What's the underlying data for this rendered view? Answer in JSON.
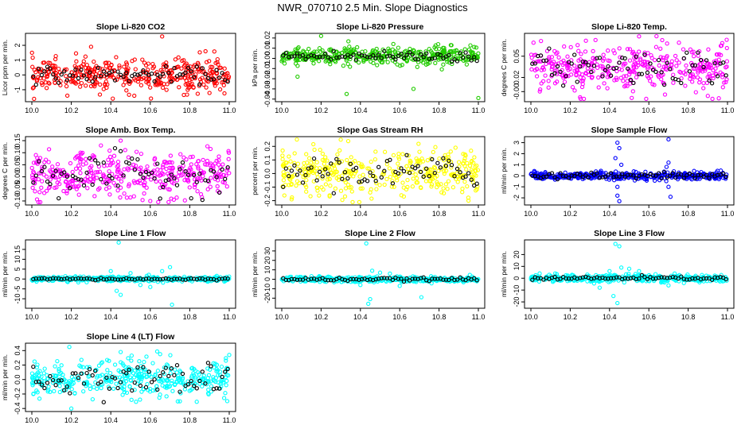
{
  "page": {
    "title": "NWR_070710  2.5 Min. Slope Diagnostics"
  },
  "colors": {
    "red": "#ff0000",
    "green": "#22cc00",
    "magenta": "#ff00ff",
    "yellow": "#ffff00",
    "blue": "#0000ff",
    "cyan": "#00ffff",
    "black": "#000000"
  },
  "chart_data": [
    {
      "type": "scatter",
      "title": "Slope Li-820 CO2",
      "ylabel": "Licor ppm per min.",
      "color": "#ff0000",
      "xlim": [
        10.0,
        11.0
      ],
      "ylim": [
        -1.7,
        2.7
      ],
      "xticks": [
        "10.0",
        "10.2",
        "10.4",
        "10.6",
        "10.8",
        "11.0"
      ],
      "yticks": [
        "-1",
        "0",
        "1",
        "2"
      ],
      "noise_sd": 0.55,
      "point_count": 380,
      "black_sd": 0.25,
      "outliers": [
        [
          10.66,
          2.6
        ],
        [
          10.41,
          -1.6
        ],
        [
          10.18,
          -1.4
        ],
        [
          10.77,
          -1.35
        ],
        [
          10.3,
          1.9
        ],
        [
          10.88,
          1.6
        ]
      ]
    },
    {
      "type": "scatter",
      "title": "Slope Li-820 Pressure",
      "ylabel": "kPa per min.",
      "color": "#22cc00",
      "xlim": [
        10.0,
        11.0
      ],
      "ylim": [
        -0.041,
        0.023
      ],
      "xticks": [
        "10.0",
        "10.2",
        "10.4",
        "10.6",
        "10.8",
        "11.0"
      ],
      "yticks": [
        "-0.04",
        "-0.03",
        "-0.02",
        "-0.01",
        "0.00",
        "0.01",
        "0.02"
      ],
      "noise_sd": 0.0045,
      "point_count": 380,
      "black_sd": 0.003,
      "center": 0.002,
      "outliers": [
        [
          10.2,
          0.022
        ],
        [
          10.33,
          -0.035
        ],
        [
          10.67,
          -0.03
        ],
        [
          11.0,
          -0.039
        ],
        [
          10.08,
          -0.018
        ]
      ]
    },
    {
      "type": "scatter",
      "title": "Slope Li-820 Temp.",
      "ylabel": "degrees C per min.",
      "color": "#ff00ff",
      "xlim": [
        10.0,
        11.0
      ],
      "ylim": [
        -0.012,
        0.08
      ],
      "xticks": [
        "10.0",
        "10.2",
        "10.4",
        "10.6",
        "10.8",
        "11.0"
      ],
      "yticks": [
        "-0.00",
        "0.02",
        "0.05"
      ],
      "noise_sd": 0.016,
      "point_count": 380,
      "black_sd": 0.012,
      "center": 0.035,
      "outliers": [
        [
          10.25,
          -0.008
        ],
        [
          10.9,
          -0.006
        ],
        [
          10.55,
          0.078
        ]
      ]
    },
    {
      "type": "scatter",
      "title": "Slope Amb. Box Temp.",
      "ylabel": "degrees C per min.",
      "color": "#ff00ff",
      "xlim": [
        10.0,
        11.0
      ],
      "ylim": [
        -0.11,
        0.16
      ],
      "xticks": [
        "10.0",
        "10.2",
        "10.4",
        "10.6",
        "10.8",
        "11.0"
      ],
      "yticks": [
        "-0.10",
        "-0.05",
        "0.00",
        "0.05",
        "0.10",
        "0.15"
      ],
      "noise_sd": 0.045,
      "point_count": 380,
      "black_sd": 0.04,
      "center": 0.01,
      "outliers": [
        [
          10.45,
          0.15
        ],
        [
          10.35,
          0.13
        ],
        [
          10.6,
          -0.1
        ]
      ]
    },
    {
      "type": "scatter",
      "title": "Slope Gas Stream RH",
      "ylabel": "percent per min.",
      "color": "#ffff00",
      "xlim": [
        10.0,
        11.0
      ],
      "ylim": [
        -0.22,
        0.26
      ],
      "xticks": [
        "10.0",
        "10.2",
        "10.4",
        "10.6",
        "10.8",
        "11.0"
      ],
      "yticks": [
        "-0.2",
        "-0.1",
        "0.0",
        "0.1",
        "0.2"
      ],
      "noise_sd": 0.08,
      "point_count": 380,
      "black_sd": 0.06,
      "center": 0.01,
      "outliers": [
        [
          10.3,
          0.25
        ],
        [
          10.95,
          -0.2
        ],
        [
          10.05,
          -0.19
        ]
      ]
    },
    {
      "type": "scatter",
      "title": "Slope Sample Flow",
      "ylabel": "ml/min per min.",
      "color": "#0000ff",
      "xlim": [
        10.0,
        11.0
      ],
      "ylim": [
        -2.5,
        3.4
      ],
      "xticks": [
        "10.0",
        "10.2",
        "10.4",
        "10.6",
        "10.8",
        "11.0"
      ],
      "yticks": [
        "-2",
        "-1",
        "0",
        "1",
        "2",
        "3"
      ],
      "noise_sd": 0.18,
      "point_count": 380,
      "black_sd": 0.15,
      "outliers": [
        [
          10.44,
          3.0
        ],
        [
          10.45,
          2.5
        ],
        [
          10.43,
          1.6
        ],
        [
          10.44,
          -1.0
        ],
        [
          10.45,
          -2.3
        ],
        [
          10.44,
          -1.8
        ],
        [
          10.7,
          3.3
        ],
        [
          10.7,
          1.2
        ],
        [
          10.71,
          -1.9
        ],
        [
          10.7,
          -1.0
        ],
        [
          10.69,
          0.8
        ],
        [
          10.46,
          1.0
        ]
      ]
    },
    {
      "type": "scatter",
      "title": "Slope Line 1 Flow",
      "ylabel": "ml/min per min.",
      "color": "#00ffff",
      "xlim": [
        10.0,
        11.0
      ],
      "ylim": [
        -14,
        19
      ],
      "xticks": [
        "10.0",
        "10.2",
        "10.4",
        "10.6",
        "10.8",
        "11.0"
      ],
      "yticks": [
        "-10",
        "-5",
        "0",
        "5",
        "10",
        "15"
      ],
      "noise_sd": 0.6,
      "point_count": 380,
      "black_sd": 0.3,
      "outliers": [
        [
          10.44,
          18.5
        ],
        [
          10.45,
          -8
        ],
        [
          10.43,
          -6
        ],
        [
          10.71,
          -13
        ],
        [
          10.7,
          6
        ],
        [
          10.5,
          3
        ],
        [
          10.6,
          -4
        ],
        [
          10.66,
          4
        ],
        [
          10.4,
          4
        ],
        [
          10.55,
          -3
        ]
      ]
    },
    {
      "type": "scatter",
      "title": "Slope Line 2 Flow",
      "ylabel": "ml/min per min.",
      "color": "#00ffff",
      "xlim": [
        10.0,
        11.0
      ],
      "ylim": [
        -29,
        40
      ],
      "xticks": [
        "10.0",
        "10.2",
        "10.4",
        "10.6",
        "10.8",
        "11.0"
      ],
      "yticks": [
        "-20",
        "-10",
        "0",
        "10",
        "20",
        "30"
      ],
      "noise_sd": 1.4,
      "point_count": 380,
      "black_sd": 0.8,
      "outliers": [
        [
          10.43,
          38
        ],
        [
          10.44,
          -26
        ],
        [
          10.45,
          -21
        ],
        [
          10.71,
          -19
        ],
        [
          10.46,
          9
        ],
        [
          10.5,
          7
        ],
        [
          10.6,
          -7
        ],
        [
          10.4,
          -6
        ],
        [
          10.55,
          6
        ]
      ]
    },
    {
      "type": "scatter",
      "title": "Slope Line 3 Flow",
      "ylabel": "ml/min per min.",
      "color": "#00ffff",
      "xlim": [
        10.0,
        11.0
      ],
      "ylim": [
        -24,
        31
      ],
      "xticks": [
        "10.0",
        "10.2",
        "10.4",
        "10.6",
        "10.8",
        "11.0"
      ],
      "yticks": [
        "-20",
        "-10",
        "0",
        "10",
        "20"
      ],
      "noise_sd": 1.5,
      "point_count": 380,
      "black_sd": 0.8,
      "outliers": [
        [
          10.43,
          29
        ],
        [
          10.45,
          27
        ],
        [
          10.44,
          -21
        ],
        [
          10.42,
          -15
        ],
        [
          10.46,
          9
        ],
        [
          10.5,
          8
        ],
        [
          10.35,
          -8
        ],
        [
          10.55,
          6
        ],
        [
          10.7,
          -6
        ],
        [
          10.4,
          6
        ]
      ]
    },
    {
      "type": "scatter",
      "title": "Slope Line 4 (LT) Flow",
      "ylabel": "ml/min per min.",
      "color": "#00ffff",
      "xlim": [
        10.0,
        11.0
      ],
      "ylim": [
        -0.42,
        0.48
      ],
      "xticks": [
        "10.0",
        "10.2",
        "10.4",
        "10.6",
        "10.8",
        "11.0"
      ],
      "yticks": [
        "-0.4",
        "-0.2",
        "0.0",
        "0.2",
        "0.4"
      ],
      "noise_sd": 0.13,
      "point_count": 380,
      "black_sd": 0.13,
      "outliers": [
        [
          10.2,
          -0.4
        ],
        [
          10.19,
          0.45
        ],
        [
          10.45,
          0.38
        ],
        [
          11.0,
          0.34
        ],
        [
          10.65,
          0.35
        ],
        [
          10.75,
          -0.3
        ]
      ]
    }
  ]
}
